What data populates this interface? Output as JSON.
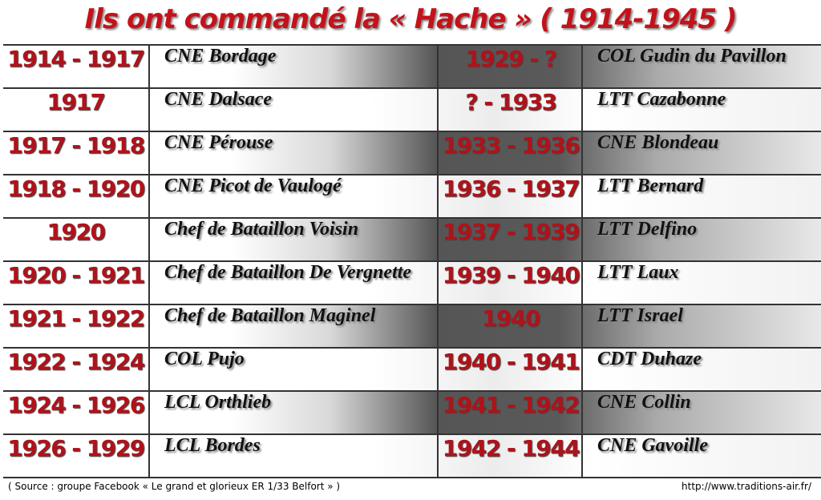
{
  "header": {
    "title": "Ils ont commandé la « Hache » ( 1914-1945 )"
  },
  "table": {
    "rows": [
      [
        "1914 - 1917",
        "CNE Bordage",
        "1929 - ?",
        "COL Gudin du Pavillon"
      ],
      [
        "1917",
        "CNE Dalsace",
        "? - 1933",
        "LTT Cazabonne"
      ],
      [
        "1917 - 1918",
        "CNE Pérouse",
        "1933 - 1936",
        "CNE Blondeau"
      ],
      [
        "1918 - 1920",
        "CNE Picot de Vaulogé",
        "1936 - 1937",
        "LTT Bernard"
      ],
      [
        "1920",
        "Chef de Bataillon Voisin",
        "1937 - 1939",
        "LTT Delfino"
      ],
      [
        "1920 - 1921",
        "Chef de Bataillon De Vergnette",
        "1939 - 1940",
        "LTT Laux"
      ],
      [
        "1921 - 1922",
        "Chef de Bataillon Maginel",
        "1940",
        "LTT Israel"
      ],
      [
        "1922 - 1924",
        "COL Pujo",
        "1940 - 1941",
        "CDT Duhaze"
      ],
      [
        "1924 - 1926",
        "LCL Orthlieb",
        "1941 - 1942",
        "CNE Collin"
      ],
      [
        "1926 - 1929",
        "LCL Bordes",
        "1942 - 1944",
        "CNE Gavoille"
      ]
    ]
  },
  "footer": {
    "source": "( Source : groupe Facebook « Le grand et glorieux ER 1/33 Belfort » )",
    "url": "http://www.traditions-air.fr/"
  }
}
